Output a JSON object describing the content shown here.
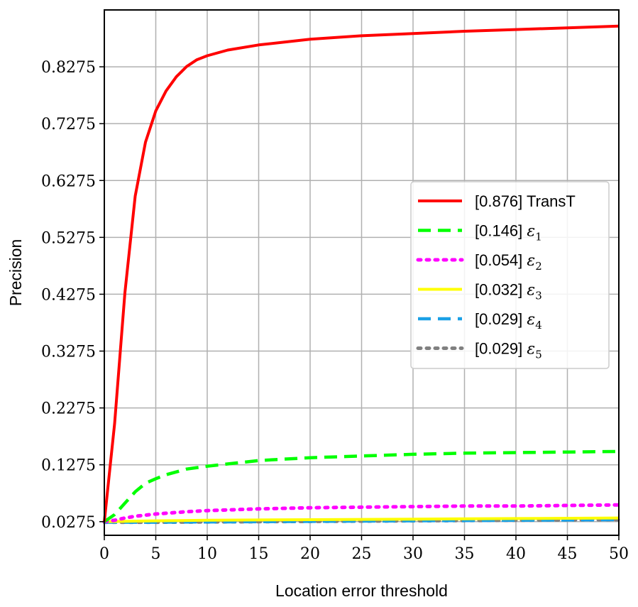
{
  "chart_data": {
    "type": "line",
    "title": "",
    "xlabel": "Location error threshold",
    "ylabel": "Precision",
    "xlim": [
      0,
      50
    ],
    "ylim": [
      0.0035,
      0.9275
    ],
    "grid": true,
    "legend_position": "center-right",
    "x_ticks": [
      "0",
      "5",
      "10",
      "15",
      "20",
      "25",
      "30",
      "35",
      "40",
      "45",
      "50"
    ],
    "y_ticks": [
      "0.0275",
      "0.1275",
      "0.2275",
      "0.3275",
      "0.4275",
      "0.5275",
      "0.6275",
      "0.7275",
      "0.8275"
    ],
    "series": [
      {
        "name": "[0.876] TransT",
        "legend_prefix": "[0.876]",
        "legend_label": "TransT",
        "color": "#ff0000",
        "style": "solid",
        "x": [
          0,
          1,
          2,
          3,
          4,
          5,
          6,
          7,
          8,
          9,
          10,
          12,
          15,
          20,
          25,
          30,
          35,
          40,
          45,
          50
        ],
        "values": [
          0.0275,
          0.2,
          0.43,
          0.6,
          0.695,
          0.75,
          0.785,
          0.81,
          0.828,
          0.84,
          0.847,
          0.857,
          0.866,
          0.876,
          0.882,
          0.886,
          0.89,
          0.893,
          0.896,
          0.899
        ]
      },
      {
        "name": "[0.146] ε1",
        "legend_prefix": "[0.146]",
        "legend_symbol": "ε",
        "legend_sub": "1",
        "color": "#00ff00",
        "style": "dashed",
        "x": [
          0,
          1,
          2,
          3,
          4,
          5,
          6,
          8,
          10,
          15,
          20,
          25,
          30,
          35,
          40,
          45,
          50
        ],
        "values": [
          0.0275,
          0.04,
          0.06,
          0.08,
          0.095,
          0.103,
          0.11,
          0.12,
          0.125,
          0.135,
          0.14,
          0.143,
          0.146,
          0.148,
          0.149,
          0.15,
          0.151
        ]
      },
      {
        "name": "[0.054] ε2",
        "legend_prefix": "[0.054]",
        "legend_symbol": "ε",
        "legend_sub": "2",
        "color": "#ff00ff",
        "style": "dotted",
        "x": [
          0,
          1,
          2,
          3,
          5,
          8,
          10,
          15,
          20,
          25,
          30,
          35,
          40,
          45,
          50
        ],
        "values": [
          0.0275,
          0.03,
          0.034,
          0.037,
          0.041,
          0.045,
          0.047,
          0.05,
          0.052,
          0.053,
          0.054,
          0.055,
          0.055,
          0.056,
          0.057
        ]
      },
      {
        "name": "[0.032] ε3",
        "legend_prefix": "[0.032]",
        "legend_symbol": "ε",
        "legend_sub": "3",
        "color": "#ffff00",
        "style": "solid",
        "x": [
          0,
          5,
          10,
          20,
          30,
          40,
          50
        ],
        "values": [
          0.0275,
          0.029,
          0.03,
          0.031,
          0.032,
          0.033,
          0.034
        ]
      },
      {
        "name": "[0.029] ε4",
        "legend_prefix": "[0.029]",
        "legend_symbol": "ε",
        "legend_sub": "4",
        "color": "#1aa0e6",
        "style": "dashed",
        "x": [
          0,
          5,
          10,
          20,
          30,
          40,
          50
        ],
        "values": [
          0.0265,
          0.0265,
          0.027,
          0.028,
          0.029,
          0.03,
          0.031
        ]
      },
      {
        "name": "[0.029] ε5",
        "legend_prefix": "[0.029]",
        "legend_symbol": "ε",
        "legend_sub": "5",
        "color": "#808080",
        "style": "dotted",
        "x": [
          0,
          5,
          10,
          20,
          30,
          40,
          50
        ],
        "values": [
          0.0265,
          0.0265,
          0.027,
          0.028,
          0.029,
          0.03,
          0.031
        ]
      }
    ]
  }
}
